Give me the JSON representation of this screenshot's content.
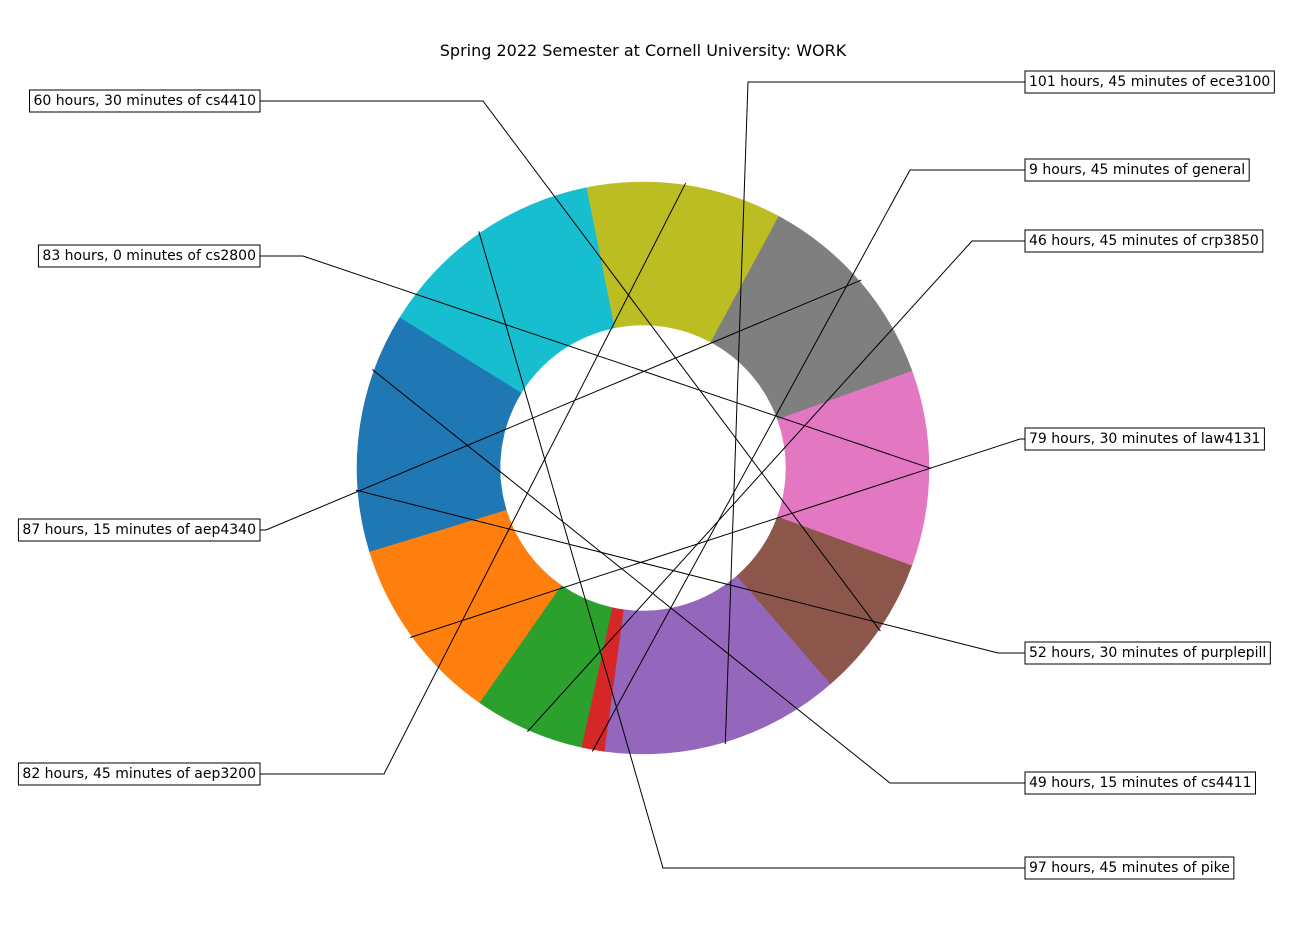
{
  "chart_data": {
    "type": "pie",
    "variant": "donut",
    "title": "Spring 2022 Semester at Cornell University: WORK",
    "unit": "hours",
    "slices": [
      {
        "name": "ece3100",
        "label": "101 hours, 45 minutes of ece3100",
        "value": 101.75,
        "color": "#9467bd"
      },
      {
        "name": "general",
        "label": "9 hours, 45 minutes of general",
        "value": 9.75,
        "color": "#d62728"
      },
      {
        "name": "crp3850",
        "label": "46 hours, 45 minutes of crp3850",
        "value": 46.75,
        "color": "#2ca02c"
      },
      {
        "name": "law4131",
        "label": "79 hours, 30 minutes of law4131",
        "value": 79.5,
        "color": "#ff7f0e"
      },
      {
        "name": "purplepill",
        "label": "52 hours, 30 minutes of purplepill",
        "value": 52.5,
        "color": "#1f77b4"
      },
      {
        "name": "cs4411",
        "label": "49 hours, 15 minutes of cs4411",
        "value": 49.25,
        "color": "#1f77b4"
      },
      {
        "name": "pike",
        "label": "97 hours, 45 minutes of pike",
        "value": 97.75,
        "color": "#17becf"
      },
      {
        "name": "aep3200",
        "label": "82 hours, 45 minutes of aep3200",
        "value": 82.75,
        "color": "#bcbd22"
      },
      {
        "name": "aep4340",
        "label": "87 hours, 15 minutes of aep4340",
        "value": 87.25,
        "color": "#7f7f7f"
      },
      {
        "name": "cs2800",
        "label": "83 hours, 0 minutes of cs2800",
        "value": 83.0,
        "color": "#e377c2"
      },
      {
        "name": "cs4410",
        "label": "60 hours, 30 minutes of cs4410",
        "value": 60.5,
        "color": "#8c564b"
      }
    ]
  }
}
